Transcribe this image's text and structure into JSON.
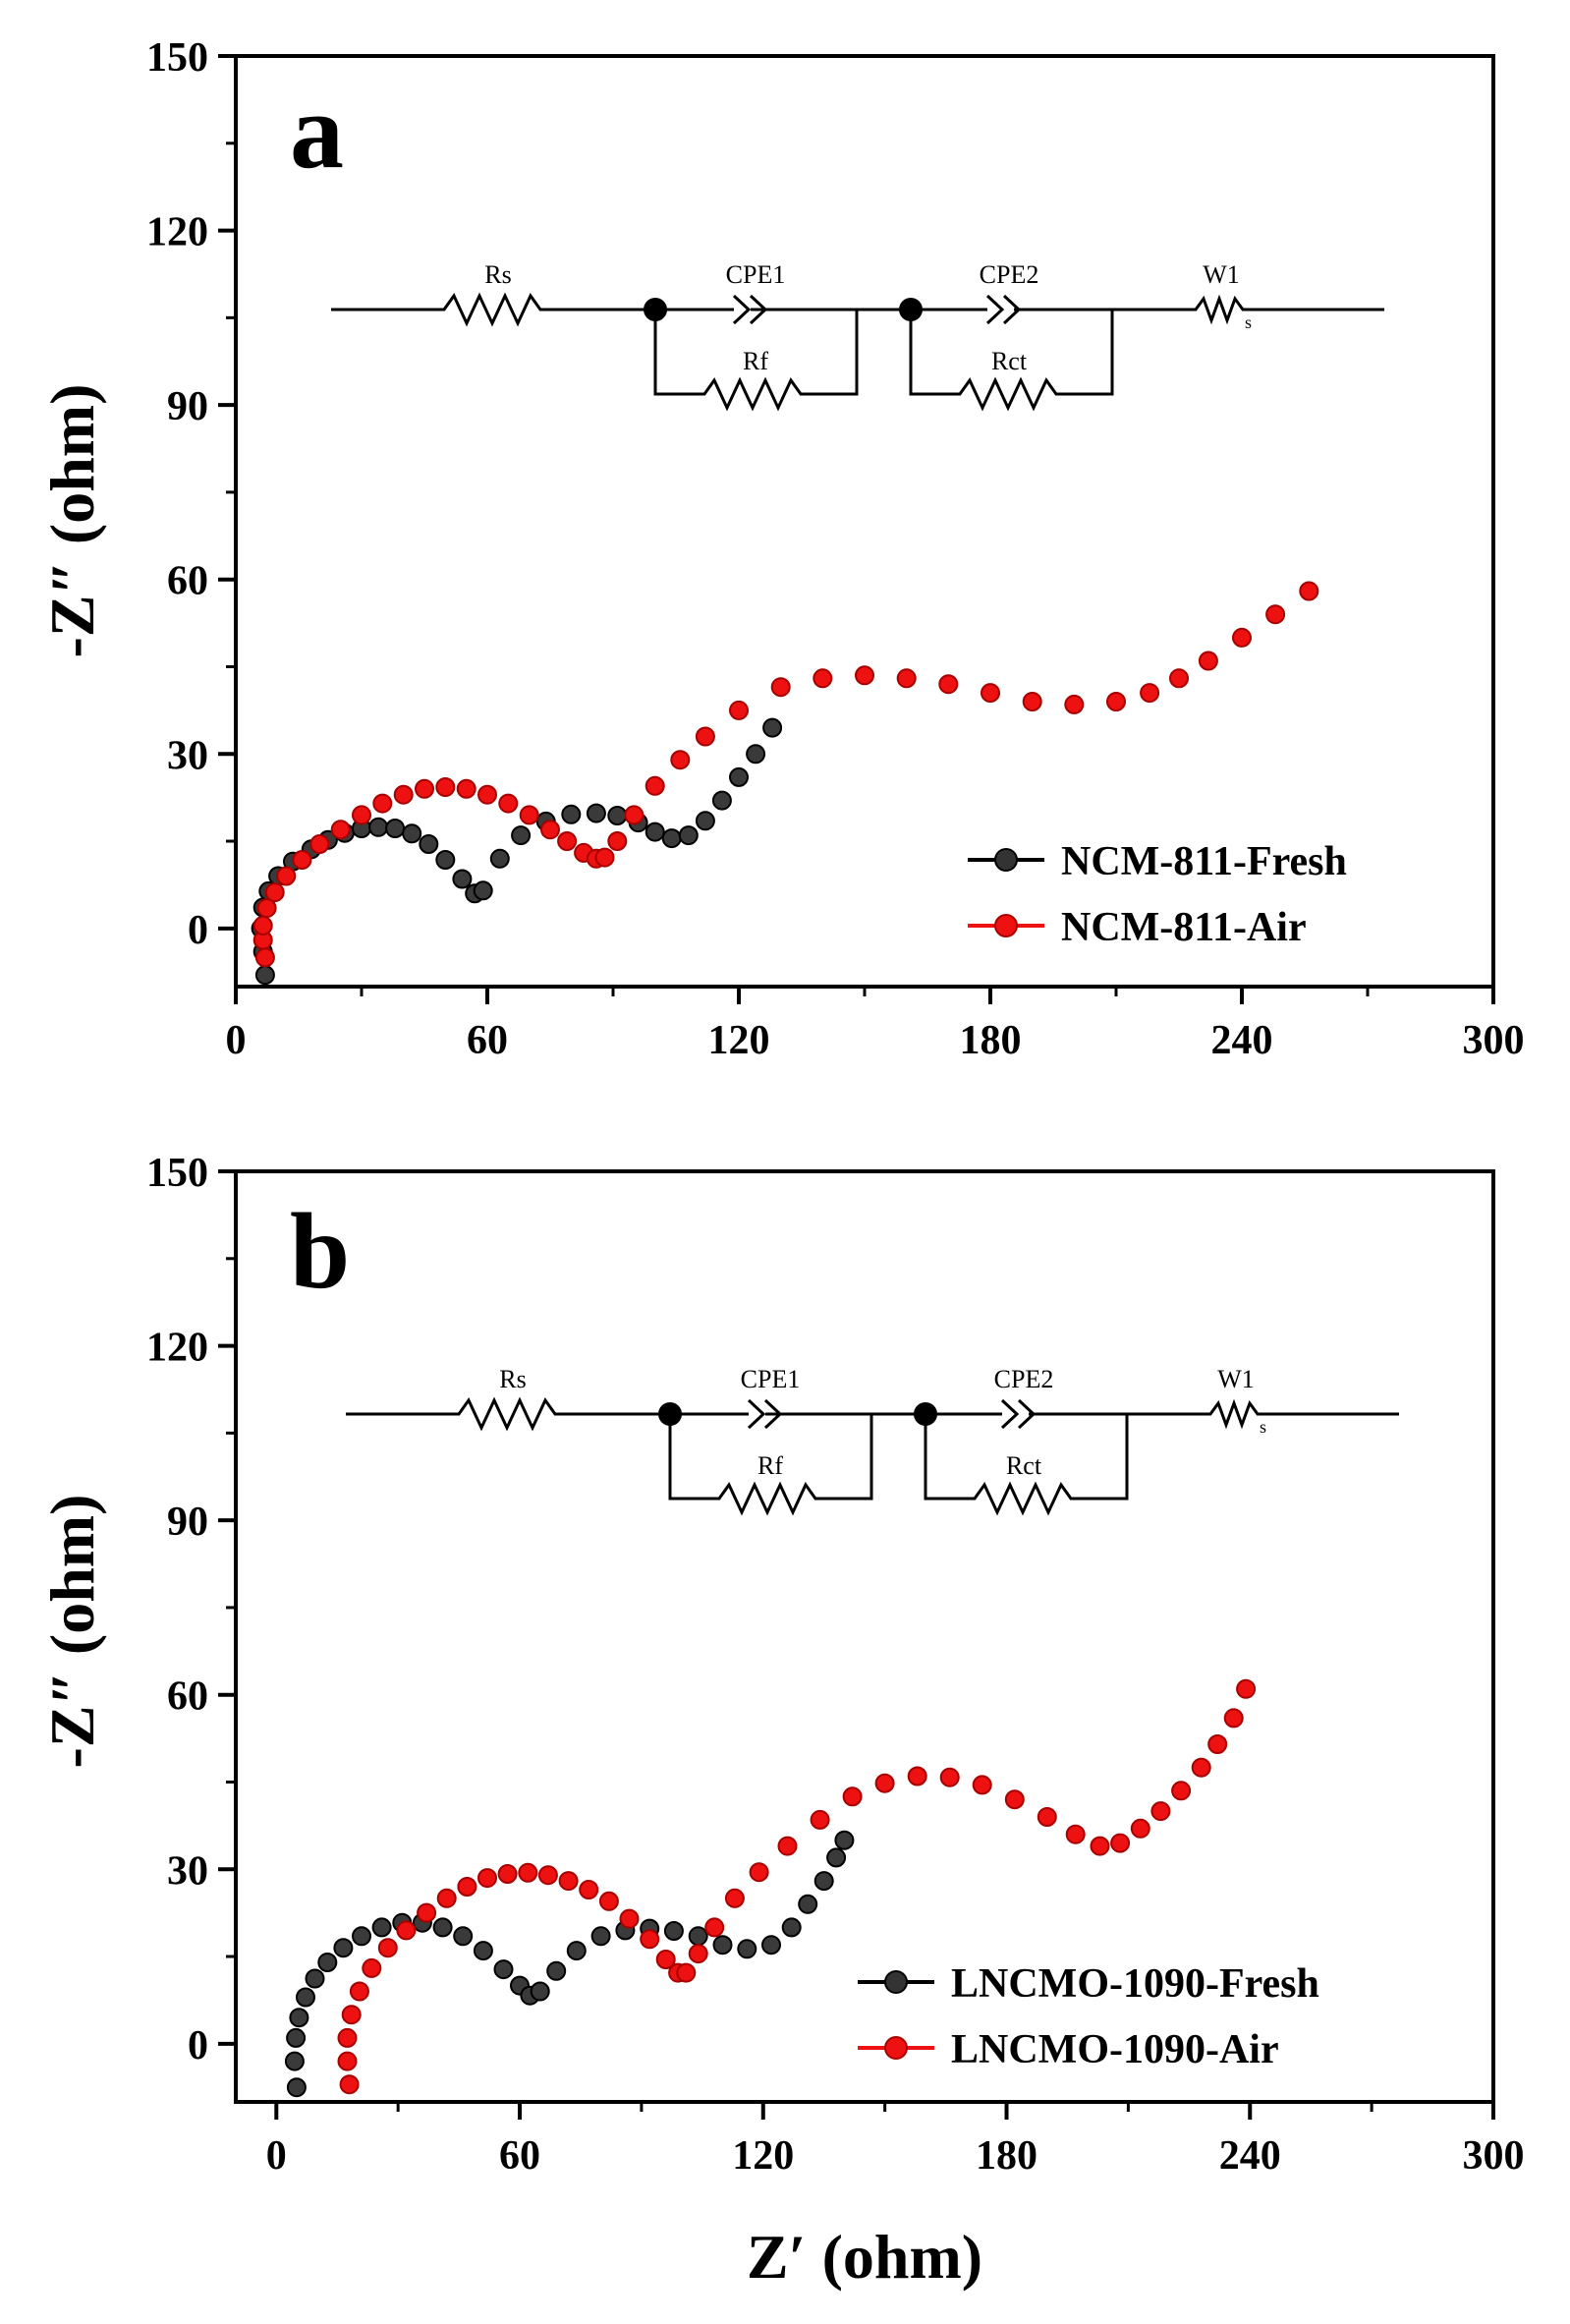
{
  "figure": {
    "xlabel": "Z′ (ohm)",
    "ylabel": "-Z″ (ohm)"
  },
  "chart_data": [
    {
      "type": "scatter",
      "panel_label": "a",
      "xlabel": "",
      "ylabel": "-Z″ (ohm)",
      "xlim": [
        0,
        300
      ],
      "ylim": [
        -10,
        150
      ],
      "xticks": [
        0,
        60,
        120,
        180,
        240,
        300
      ],
      "yticks": [
        0,
        30,
        60,
        90,
        120,
        150
      ],
      "grid": false,
      "legend_position": "bottom-right",
      "circuit": {
        "labels": [
          "Rs",
          "CPE1",
          "Rf",
          "CPE2",
          "Rct",
          "W1",
          "s"
        ]
      },
      "series": [
        {
          "name": "NCM-811-Fresh",
          "color": "#000000",
          "x": [
            7.0,
            6.5,
            6.0,
            6.5,
            7.8,
            10.1,
            13.6,
            18.0,
            22.0,
            26.0,
            30.0,
            34.0,
            38.0,
            42.0,
            46.0,
            50.0,
            54.0,
            57.0,
            59.0,
            63.0,
            68.0,
            74.0,
            80.0,
            86.0,
            91.0,
            96.0,
            100.0,
            104.0,
            108.0,
            112.0,
            116.0,
            120.0,
            124.0,
            128.0
          ],
          "y": [
            -8.0,
            -4.0,
            0.0,
            3.6,
            6.4,
            9.0,
            11.5,
            13.6,
            15.2,
            16.4,
            17.2,
            17.4,
            17.2,
            16.3,
            14.5,
            11.8,
            8.5,
            6.0,
            6.5,
            12.0,
            16.0,
            18.4,
            19.6,
            19.8,
            19.4,
            18.2,
            16.6,
            15.5,
            16.0,
            18.5,
            22.0,
            26.0,
            30.0,
            34.5
          ]
        },
        {
          "name": "NCM-811-Air",
          "color": "#ee1111",
          "x": [
            7.0,
            6.5,
            6.5,
            7.4,
            9.3,
            12.0,
            15.8,
            20.0,
            25.0,
            30.0,
            35.0,
            40.0,
            45.0,
            50.0,
            55.0,
            60.0,
            65.0,
            70.0,
            75.0,
            79.0,
            83.0,
            86.0,
            88.0,
            91.0,
            95.0,
            100.0,
            106.0,
            112.0,
            120.0,
            130.0,
            140.0,
            150.0,
            160.0,
            170.0,
            180.0,
            190.0,
            200.0,
            210.0,
            218.0,
            225.0,
            232.0,
            240.0,
            248.0,
            256.0
          ],
          "y": [
            -5.0,
            -2.0,
            0.5,
            3.5,
            6.2,
            9.0,
            11.8,
            14.5,
            17.0,
            19.5,
            21.5,
            23.0,
            24.0,
            24.3,
            24.0,
            23.0,
            21.5,
            19.5,
            17.0,
            15.0,
            13.0,
            12.0,
            12.2,
            15.0,
            19.5,
            24.5,
            29.0,
            33.0,
            37.5,
            41.5,
            43.0,
            43.5,
            43.0,
            42.0,
            40.5,
            39.0,
            38.5,
            39.0,
            40.5,
            43.0,
            46.0,
            50.0,
            54.0,
            58.0
          ]
        }
      ]
    },
    {
      "type": "scatter",
      "panel_label": "b",
      "xlabel": "Z′ (ohm)",
      "ylabel": "-Z″ (ohm)",
      "xlim": [
        -10,
        300
      ],
      "ylim": [
        -10,
        150
      ],
      "xticks": [
        0,
        60,
        120,
        180,
        240,
        300
      ],
      "yticks": [
        0,
        30,
        60,
        90,
        120,
        150
      ],
      "grid": false,
      "legend_position": "bottom-right",
      "circuit": {
        "labels": [
          "Rs",
          "CPE1",
          "Rf",
          "CPE2",
          "Rct",
          "W1",
          "s"
        ]
      },
      "series": [
        {
          "name": "LNCMO-1090-Fresh",
          "color": "#000000",
          "x": [
            5.0,
            4.5,
            4.8,
            5.6,
            7.2,
            9.5,
            12.6,
            16.5,
            21.0,
            26.0,
            31.0,
            36.0,
            41.0,
            46.0,
            51.0,
            56.0,
            60.0,
            62.5,
            65.0,
            69.0,
            74.0,
            80.0,
            86.0,
            92.0,
            98.0,
            104.0,
            110.0,
            116.0,
            122.0,
            127.0,
            131.0,
            135.0,
            138.0,
            140.0
          ],
          "y": [
            -7.5,
            -3.0,
            1.0,
            4.5,
            8.0,
            11.2,
            14.0,
            16.5,
            18.5,
            20.0,
            20.8,
            20.8,
            20.0,
            18.5,
            16.0,
            12.8,
            10.0,
            8.3,
            9.0,
            12.5,
            16.0,
            18.5,
            19.5,
            19.8,
            19.4,
            18.5,
            17.0,
            16.3,
            17.0,
            20.0,
            24.0,
            28.0,
            32.0,
            35.0
          ]
        },
        {
          "name": "LNCMO-1090-Air",
          "color": "#ee1111",
          "x": [
            18.0,
            17.5,
            17.5,
            18.5,
            20.5,
            23.5,
            27.5,
            32.0,
            37.0,
            42.0,
            47.0,
            52.0,
            57.0,
            62.0,
            67.0,
            72.0,
            77.0,
            82.0,
            87.0,
            92.0,
            96.0,
            99.0,
            101.0,
            104.0,
            108.0,
            113.0,
            119.0,
            126.0,
            134.0,
            142.0,
            150.0,
            158.0,
            166.0,
            174.0,
            182.0,
            190.0,
            197.0,
            203.0,
            208.0,
            213.0,
            218.0,
            223.0,
            228.0,
            232.0,
            236.0,
            239.0
          ],
          "y": [
            -7.0,
            -3.0,
            1.0,
            5.0,
            9.0,
            13.0,
            16.5,
            19.5,
            22.5,
            25.0,
            27.0,
            28.5,
            29.2,
            29.4,
            29.0,
            28.0,
            26.5,
            24.5,
            21.5,
            18.0,
            14.5,
            12.2,
            12.2,
            15.5,
            20.0,
            25.0,
            29.5,
            34.0,
            38.5,
            42.5,
            44.8,
            46.0,
            45.8,
            44.5,
            42.0,
            39.0,
            36.0,
            34.0,
            34.5,
            37.0,
            40.0,
            43.5,
            47.5,
            51.5,
            56.0,
            61.0
          ]
        }
      ]
    }
  ]
}
